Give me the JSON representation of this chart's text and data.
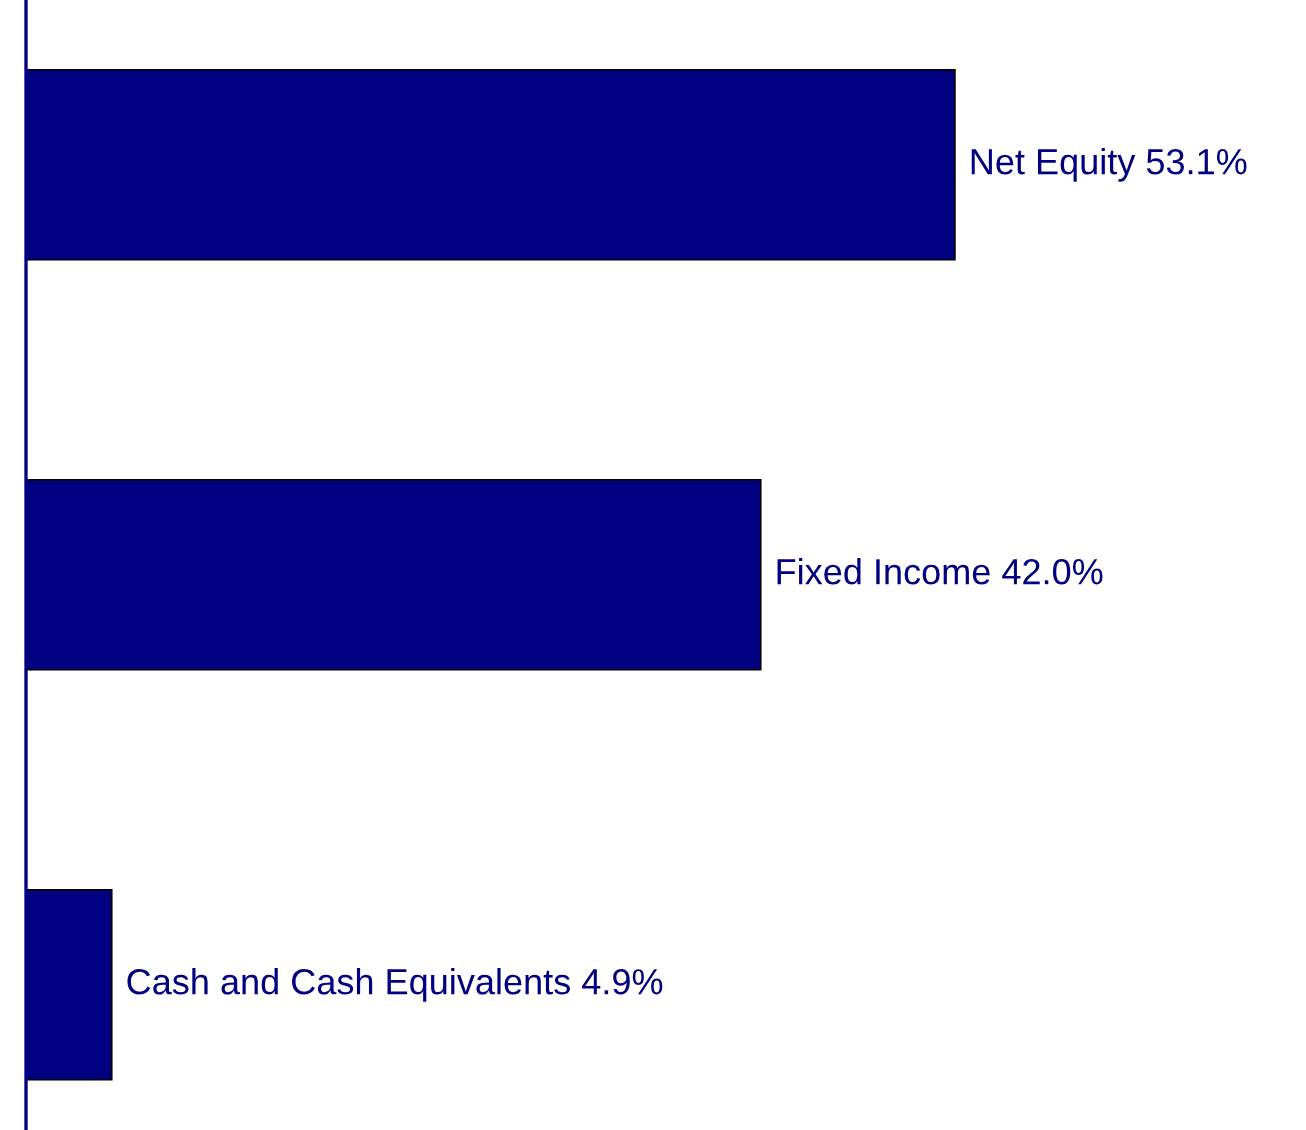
{
  "chart_data": {
    "type": "bar",
    "orientation": "horizontal",
    "categories": [
      null,
      null,
      null
    ],
    "values": [
      53.1,
      42.0,
      4.9
    ],
    "value_labels": [
      "Net Equity 53.1%",
      "Fixed Income 42.0%",
      "Cash and Cash Equivalents 4.9%"
    ],
    "color": "#000080",
    "grid": false,
    "legend": false
  }
}
